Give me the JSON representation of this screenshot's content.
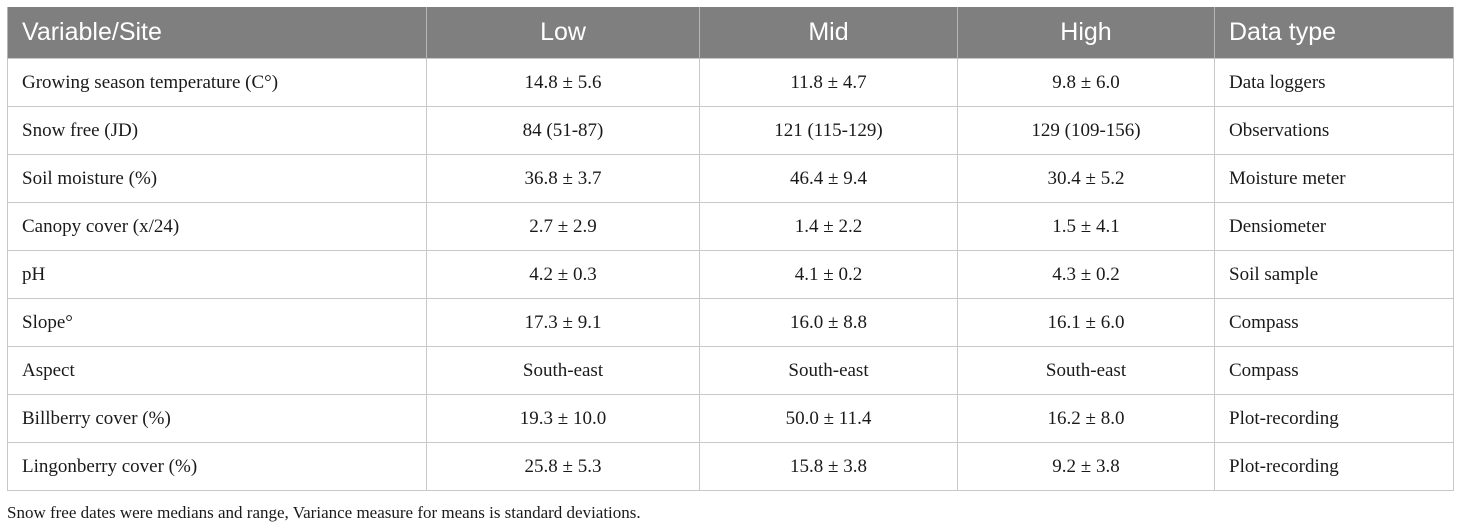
{
  "table": {
    "headers": [
      "Variable/Site",
      "Low",
      "Mid",
      "High",
      "Data type"
    ],
    "rows": [
      [
        "Growing season temperature (C°)",
        "14.8 ± 5.6",
        "11.8 ± 4.7",
        "9.8 ± 6.0",
        "Data loggers"
      ],
      [
        "Snow free (JD)",
        "84 (51-87)",
        "121 (115-129)",
        "129 (109-156)",
        "Observations"
      ],
      [
        "Soil moisture (%)",
        "36.8 ± 3.7",
        "46.4 ± 9.4",
        "30.4 ± 5.2",
        "Moisture meter"
      ],
      [
        "Canopy cover (x/24)",
        "2.7 ± 2.9",
        "1.4 ± 2.2",
        "1.5 ± 4.1",
        "Densiometer"
      ],
      [
        "pH",
        "4.2 ± 0.3",
        "4.1 ± 0.2",
        "4.3 ± 0.2",
        "Soil sample"
      ],
      [
        "Slope°",
        "17.3 ± 9.1",
        "16.0 ± 8.8",
        "16.1 ± 6.0",
        "Compass"
      ],
      [
        "Aspect",
        "South-east",
        "South-east",
        "South-east",
        "Compass"
      ],
      [
        "Billberry cover (%)",
        "19.3 ± 10.0",
        "50.0 ± 11.4",
        "16.2 ± 8.0",
        "Plot-recording"
      ],
      [
        "Lingonberry cover (%)",
        "25.8 ± 5.3",
        "15.8 ± 3.8",
        "9.2 ± 3.8",
        "Plot-recording"
      ]
    ]
  },
  "footnote": "Snow free dates were medians and range, Variance measure for means is standard deviations.",
  "colors": {
    "header_background": "#7f7f7f",
    "header_text": "#ffffff",
    "grid_line": "#c8c8c8"
  }
}
